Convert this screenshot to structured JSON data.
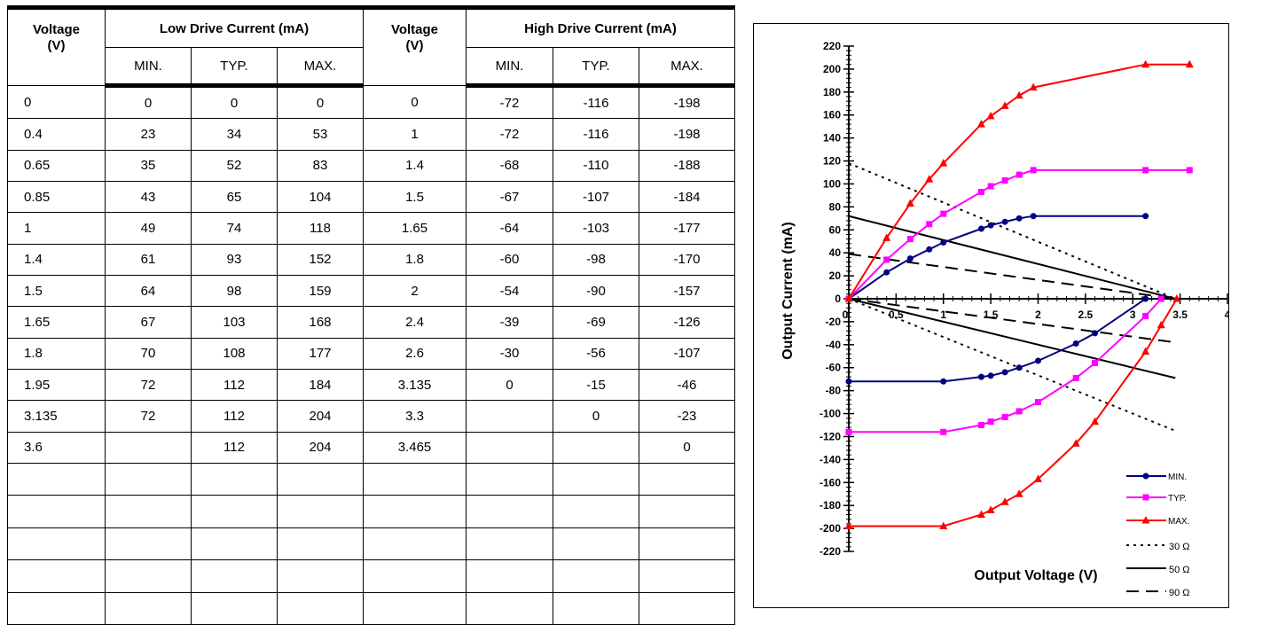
{
  "table": {
    "headers": {
      "voltage_low": "Voltage\n(V)",
      "low_drive": "Low Drive Current (mA)",
      "voltage_high": "Voltage\n(V)",
      "high_drive": "High Drive Current (mA)",
      "sub": [
        "MIN.",
        "TYP.",
        "MAX.",
        "MIN.",
        "TYP.",
        "MAX."
      ]
    },
    "rows": [
      [
        "0",
        "0",
        "0",
        "0",
        "0",
        "-72",
        "-116",
        "-198"
      ],
      [
        "0.4",
        "23",
        "34",
        "53",
        "1",
        "-72",
        "-116",
        "-198"
      ],
      [
        "0.65",
        "35",
        "52",
        "83",
        "1.4",
        "-68",
        "-110",
        "-188"
      ],
      [
        "0.85",
        "43",
        "65",
        "104",
        "1.5",
        "-67",
        "-107",
        "-184"
      ],
      [
        "1",
        "49",
        "74",
        "118",
        "1.65",
        "-64",
        "-103",
        "-177"
      ],
      [
        "1.4",
        "61",
        "93",
        "152",
        "1.8",
        "-60",
        "-98",
        "-170"
      ],
      [
        "1.5",
        "64",
        "98",
        "159",
        "2",
        "-54",
        "-90",
        "-157"
      ],
      [
        "1.65",
        "67",
        "103",
        "168",
        "2.4",
        "-39",
        "-69",
        "-126"
      ],
      [
        "1.8",
        "70",
        "108",
        "177",
        "2.6",
        "-30",
        "-56",
        "-107"
      ],
      [
        "1.95",
        "72",
        "112",
        "184",
        "3.135",
        "0",
        "-15",
        "-46"
      ],
      [
        "3.135",
        "72",
        "112",
        "204",
        "3.3",
        "",
        "0",
        "-23"
      ],
      [
        "3.6",
        "",
        "112",
        "204",
        "3.465",
        "",
        "",
        "0"
      ]
    ],
    "empty_rows": 5
  },
  "chart_data": {
    "type": "line",
    "xlabel": "Output Voltage (V)",
    "ylabel": "Output Current (mA)",
    "xlim": [
      0,
      4
    ],
    "ylim": [
      -220,
      220
    ],
    "x_ticks": [
      "0",
      "0.5",
      "1",
      "1.5",
      "2",
      "2.5",
      "3",
      "3.5",
      "4"
    ],
    "y_ticks": [
      "220",
      "200",
      "180",
      "160",
      "140",
      "120",
      "100",
      "80",
      "60",
      "40",
      "20",
      "0",
      "-20",
      "-40",
      "-60",
      "-80",
      "-100",
      "-120",
      "-140",
      "-160",
      "-180",
      "-200",
      "-220"
    ],
    "grid": false,
    "legend_position": "bottom-right",
    "series": [
      {
        "name": "MIN.",
        "color": "#000080",
        "marker": "circle",
        "low": [
          [
            0,
            0
          ],
          [
            0.4,
            23
          ],
          [
            0.65,
            35
          ],
          [
            0.85,
            43
          ],
          [
            1,
            49
          ],
          [
            1.4,
            61
          ],
          [
            1.5,
            64
          ],
          [
            1.65,
            67
          ],
          [
            1.8,
            70
          ],
          [
            1.95,
            72
          ],
          [
            3.135,
            72
          ]
        ],
        "high": [
          [
            0,
            -72
          ],
          [
            1,
            -72
          ],
          [
            1.4,
            -68
          ],
          [
            1.5,
            -67
          ],
          [
            1.65,
            -64
          ],
          [
            1.8,
            -60
          ],
          [
            2,
            -54
          ],
          [
            2.4,
            -39
          ],
          [
            2.6,
            -30
          ],
          [
            3.135,
            0
          ]
        ]
      },
      {
        "name": "TYP.",
        "color": "#ff00ff",
        "marker": "square",
        "low": [
          [
            0,
            0
          ],
          [
            0.4,
            34
          ],
          [
            0.65,
            52
          ],
          [
            0.85,
            65
          ],
          [
            1,
            74
          ],
          [
            1.4,
            93
          ],
          [
            1.5,
            98
          ],
          [
            1.65,
            103
          ],
          [
            1.8,
            108
          ],
          [
            1.95,
            112
          ],
          [
            3.135,
            112
          ],
          [
            3.6,
            112
          ]
        ],
        "high": [
          [
            0,
            -116
          ],
          [
            1,
            -116
          ],
          [
            1.4,
            -110
          ],
          [
            1.5,
            -107
          ],
          [
            1.65,
            -103
          ],
          [
            1.8,
            -98
          ],
          [
            2,
            -90
          ],
          [
            2.4,
            -69
          ],
          [
            2.6,
            -56
          ],
          [
            3.135,
            -15
          ],
          [
            3.3,
            0
          ]
        ]
      },
      {
        "name": "MAX.",
        "color": "#ff0000",
        "marker": "triangle",
        "low": [
          [
            0,
            0
          ],
          [
            0.4,
            53
          ],
          [
            0.65,
            83
          ],
          [
            0.85,
            104
          ],
          [
            1,
            118
          ],
          [
            1.4,
            152
          ],
          [
            1.5,
            159
          ],
          [
            1.65,
            168
          ],
          [
            1.8,
            177
          ],
          [
            1.95,
            184
          ],
          [
            3.135,
            204
          ],
          [
            3.6,
            204
          ]
        ],
        "high": [
          [
            0,
            -198
          ],
          [
            1,
            -198
          ],
          [
            1.4,
            -188
          ],
          [
            1.5,
            -184
          ],
          [
            1.65,
            -177
          ],
          [
            1.8,
            -170
          ],
          [
            2,
            -157
          ],
          [
            2.4,
            -126
          ],
          [
            2.6,
            -107
          ],
          [
            3.135,
            -46
          ],
          [
            3.3,
            -23
          ],
          [
            3.465,
            0
          ]
        ]
      }
    ],
    "load_lines": [
      {
        "name": "30 Ω",
        "dash": "dotted",
        "low": [
          [
            0,
            118
          ],
          [
            3.45,
            0
          ]
        ],
        "high": [
          [
            0,
            0
          ],
          [
            3.45,
            -115
          ]
        ]
      },
      {
        "name": "50 Ω",
        "dash": "solid",
        "low": [
          [
            0,
            72
          ],
          [
            3.45,
            0
          ]
        ],
        "high": [
          [
            0,
            0
          ],
          [
            3.45,
            -69
          ]
        ]
      },
      {
        "name": "90 Ω",
        "dash": "dashed",
        "low": [
          [
            0,
            39
          ],
          [
            3.45,
            0
          ]
        ],
        "high": [
          [
            0,
            0
          ],
          [
            3.45,
            -38
          ]
        ]
      }
    ]
  }
}
